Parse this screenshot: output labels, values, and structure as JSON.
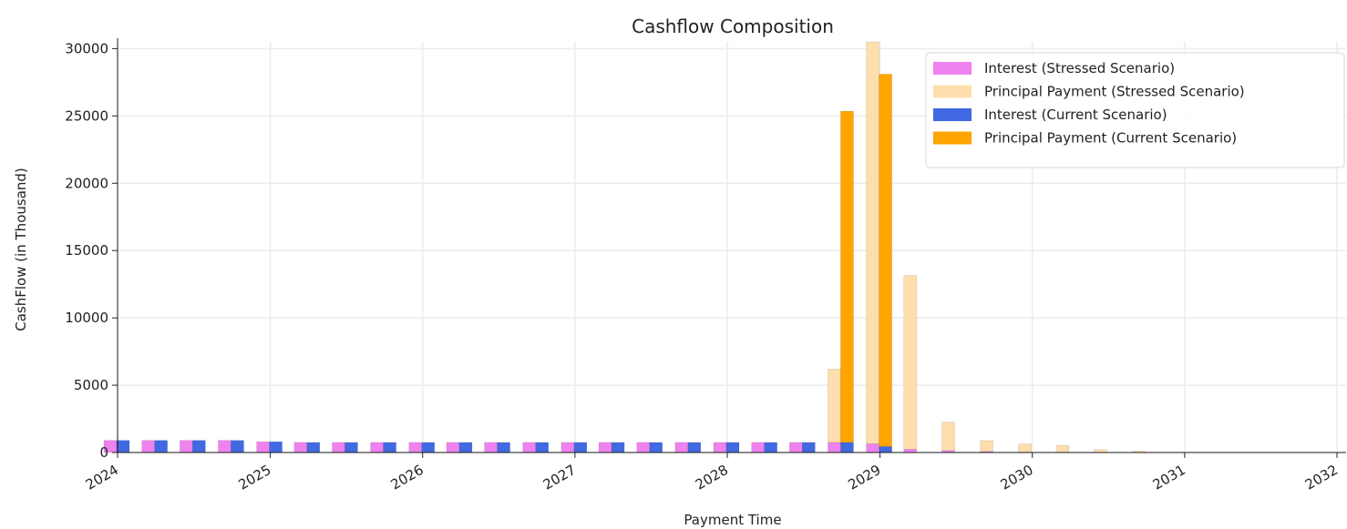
{
  "chart_data": {
    "type": "bar",
    "title": "Cashflow Composition",
    "xlabel": "Payment Time",
    "ylabel": "CashFlow (in Thousand)",
    "x_ticks": [
      "2024",
      "2025",
      "2026",
      "2027",
      "2028",
      "2029",
      "2030",
      "2031",
      "2032"
    ],
    "y_ticks": [
      "0",
      "5000",
      "10000",
      "15000",
      "20000",
      "25000",
      "30000"
    ],
    "ylim": [
      0,
      30500
    ],
    "xlim": [
      "2024-01-01",
      "2032-01-01"
    ],
    "stacked": true,
    "grid": true,
    "legend_position": "top-right",
    "groups": [
      {
        "name": "Stressed Scenario",
        "dates": [
          "2024-01-01",
          "2024-04-01",
          "2024-07-01",
          "2024-10-01",
          "2025-01-01",
          "2025-04-01",
          "2025-07-01",
          "2025-10-01",
          "2026-01-01",
          "2026-04-01",
          "2026-07-01",
          "2026-10-01",
          "2027-01-01",
          "2027-04-01",
          "2027-07-01",
          "2027-10-01",
          "2028-01-01",
          "2028-04-01",
          "2028-07-01",
          "2028-10-01",
          "2029-01-01",
          "2029-04-01",
          "2029-07-01",
          "2029-10-01",
          "2030-01-01",
          "2030-04-01",
          "2030-07-01",
          "2030-10-01"
        ],
        "series": [
          {
            "name": "Interest (Stressed Scenario)",
            "color": "#ee82ee",
            "values": [
              900,
              900,
              900,
              900,
              800,
              750,
              750,
              750,
              750,
              750,
              750,
              750,
              750,
              750,
              750,
              750,
              750,
              750,
              750,
              750,
              650,
              250,
              150,
              80,
              40,
              30,
              20,
              10
            ]
          },
          {
            "name": "Principal Payment (Stressed Scenario)",
            "color": "#ffdead",
            "values": [
              0,
              0,
              0,
              0,
              0,
              0,
              0,
              0,
              0,
              0,
              0,
              0,
              0,
              0,
              0,
              0,
              0,
              0,
              0,
              5450,
              29850,
              12900,
              2100,
              800,
              600,
              500,
              200,
              100
            ]
          }
        ]
      },
      {
        "name": "Current Scenario",
        "dates": [
          "2024-01-01",
          "2024-04-01",
          "2024-07-01",
          "2024-10-01",
          "2025-01-01",
          "2025-04-01",
          "2025-07-01",
          "2025-10-01",
          "2026-01-01",
          "2026-04-01",
          "2026-07-01",
          "2026-10-01",
          "2027-01-01",
          "2027-04-01",
          "2027-07-01",
          "2027-10-01",
          "2028-01-01",
          "2028-04-01",
          "2028-07-01",
          "2028-10-01",
          "2029-01-01"
        ],
        "series": [
          {
            "name": "Interest (Current Scenario)",
            "color": "#4169e1",
            "values": [
              900,
              900,
              900,
              900,
              800,
              750,
              750,
              750,
              750,
              750,
              750,
              750,
              750,
              750,
              750,
              750,
              750,
              750,
              750,
              750,
              450
            ]
          },
          {
            "name": "Principal Payment (Current Scenario)",
            "color": "#ffa500",
            "values": [
              0,
              0,
              0,
              0,
              0,
              0,
              0,
              0,
              0,
              0,
              0,
              0,
              0,
              0,
              0,
              0,
              0,
              0,
              0,
              24600,
              27650
            ]
          }
        ]
      }
    ]
  }
}
